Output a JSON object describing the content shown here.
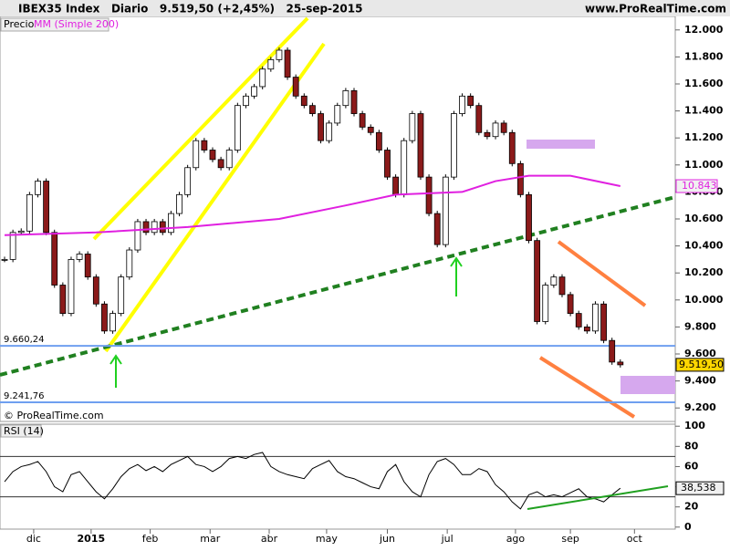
{
  "header": {
    "title": "IBEX35 Index   Diario   9.519,50 (+2,45%)   25-sep-2015",
    "site": "www.ProRealTime.com"
  },
  "chart_data": [
    {
      "type": "candlestick",
      "label": "Precio",
      "series": [
        {
          "name": "Precio",
          "color": "#000000",
          "values": [
            10300,
            10500,
            10510,
            10780,
            10880,
            10500,
            10110,
            9900,
            10300,
            10340,
            10170,
            9970,
            9770,
            9900,
            10170,
            10370,
            10580,
            10500,
            10580,
            10500,
            10640,
            10780,
            10980,
            11180,
            11110,
            11040,
            10980,
            11110,
            11440,
            11510,
            11580,
            11710,
            11780,
            11850,
            11650,
            11510,
            11440,
            11380,
            11180,
            11310,
            11440,
            11550,
            11380,
            11280,
            11240,
            11110,
            10910,
            10780,
            11180,
            11380,
            10910,
            10640,
            10410,
            10910,
            11380,
            11510,
            11440,
            11240,
            11210,
            11310,
            11240,
            11010,
            10780,
            10440,
            9840,
            10110,
            10170,
            10040,
            9900,
            9800,
            9770,
            9970,
            9700,
            9540,
            9519.5
          ],
          "value_labels": {
            "74": "9.519,50"
          }
        },
        {
          "name": "MM (Simple 200)",
          "color": "#e020e0",
          "x": [
            0,
            11,
            22,
            33,
            41,
            47,
            55,
            59,
            63,
            68,
            74
          ],
          "values": [
            10480,
            10500,
            10540,
            10600,
            10700,
            10780,
            10800,
            10880,
            10920,
            10920,
            10843
          ],
          "value_labels": {
            "10": "10.843"
          }
        }
      ],
      "levels": [
        {
          "value": 9660.24,
          "label": "9.660,24"
        },
        {
          "value": 9241.76,
          "label": "9.241,76"
        }
      ],
      "xlim": [
        -0.55,
        80.6
      ],
      "xticks": [
        {
          "value": 3.5,
          "label": "dic"
        },
        {
          "value": 10.4,
          "label": "2015"
        },
        {
          "value": 17.5,
          "label": "feb"
        },
        {
          "value": 24.7,
          "label": "mar"
        },
        {
          "value": 31.8,
          "label": "abr"
        },
        {
          "value": 38.7,
          "label": "may"
        },
        {
          "value": 46,
          "label": "jun"
        },
        {
          "value": 53.2,
          "label": "jul"
        },
        {
          "value": 61.4,
          "label": "ago"
        },
        {
          "value": 68,
          "label": "sep"
        },
        {
          "value": 75.7,
          "label": "oct"
        }
      ],
      "ylim": [
        9100,
        12100
      ],
      "yticks": [
        {
          "value": 9200,
          "label": "9.200"
        },
        {
          "value": 9400,
          "label": "9.400"
        },
        {
          "value": 9600,
          "label": "9.600"
        },
        {
          "value": 9800,
          "label": "9.800"
        },
        {
          "value": 10000,
          "label": "10.000"
        },
        {
          "value": 10200,
          "label": "10.200"
        },
        {
          "value": 10400,
          "label": "10.400"
        },
        {
          "value": 10600,
          "label": "10.600"
        },
        {
          "value": 10800,
          "label": "10.800"
        },
        {
          "value": 11000,
          "label": "11.000"
        },
        {
          "value": 11200,
          "label": "11.200"
        },
        {
          "value": 11400,
          "label": "11.400"
        },
        {
          "value": 11600,
          "label": "11.600"
        },
        {
          "value": 11800,
          "label": "11.800"
        },
        {
          "value": 12000,
          "label": "12.000"
        }
      ],
      "footer": "© ProRealTime.com"
    },
    {
      "type": "line",
      "label": "RSI (14)",
      "series": [
        {
          "name": "RSI (14)",
          "color": "#000000",
          "values": [
            45,
            55,
            60,
            62,
            65,
            55,
            40,
            35,
            52,
            55,
            45,
            35,
            28,
            38,
            50,
            58,
            62,
            56,
            60,
            55,
            62,
            66,
            70,
            62,
            60,
            55,
            60,
            68,
            70,
            68,
            72,
            74,
            60,
            55,
            52,
            50,
            48,
            58,
            62,
            66,
            55,
            50,
            48,
            44,
            40,
            38,
            55,
            62,
            45,
            35,
            30,
            52,
            65,
            68,
            62,
            52,
            52,
            58,
            55,
            42,
            35,
            25,
            18,
            32,
            35,
            30,
            32,
            30,
            34,
            38,
            30,
            28,
            25,
            32,
            38.538
          ],
          "value_labels": {
            "74": "38,538"
          }
        }
      ],
      "levels": [
        70,
        30
      ],
      "xlim": [
        -0.55,
        80.6
      ],
      "ylim": [
        -2,
        102
      ],
      "yticks": [
        0,
        20,
        40,
        60,
        80,
        100
      ]
    }
  ]
}
